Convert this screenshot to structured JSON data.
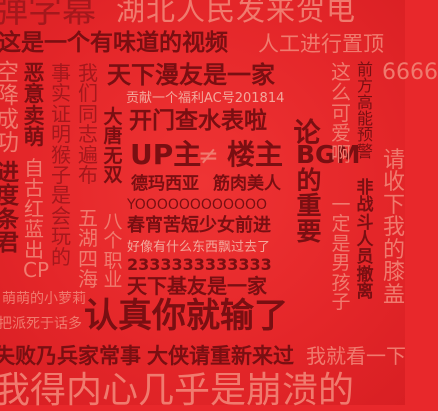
{
  "background_color": "#e8282b",
  "lines": {
    "danmu": "弹字幕",
    "hubei": "湖北人民发来贺电",
    "row2": "这是一个有味道的视频",
    "row2b": "人工进行置顶",
    "tianxia1": "天下漫友是一家",
    "gongxian": "贡献一个福利AC号201814",
    "kaimen": "开门查水表啦",
    "upzhu": "UP主",
    "neq": "≠",
    "louzhu": "楼主",
    "demaxiya": "德玛西亚",
    "jinrou": "筋肉美人",
    "yooo": "YOOOOOOOOOOOO",
    "chunxiao": "春宵苦短少女前进",
    "haoxiang": "好像有什么东西飘过去了",
    "num2333": "2333333333333",
    "tianxia2": "天下基友是一家",
    "mengmeng": "萌萌的小萝莉",
    "baipai": "把派死于话多",
    "renzhen": "认真你就输了",
    "shibai": "失败乃兵家常事",
    "daxia": "大侠请重新来过",
    "wojiu": "我就看一下",
    "bottom": "我得内心几乎是崩溃的"
  },
  "columns": {
    "kong": "空降成功",
    "jinsuo": "进度条君",
    "eyi": "恶意卖萌",
    "zi": "自古红蓝出CP",
    "shishi": "事实证明猴子是会玩的",
    "women": "我们同志遍布",
    "wuhu": "五湖四海",
    "datang": "大唐无双",
    "bage": "八个职业",
    "zhegewo": "这么可爱啊",
    "yiding": "一定是男孩子",
    "qianfang": "前方高能预警",
    "feizhan": "非战斗人员撤离",
    "lun": "论",
    "bgm": "BGM的重要",
    "num6666": "6666",
    "qingshou": "请收下我的膝盖"
  }
}
